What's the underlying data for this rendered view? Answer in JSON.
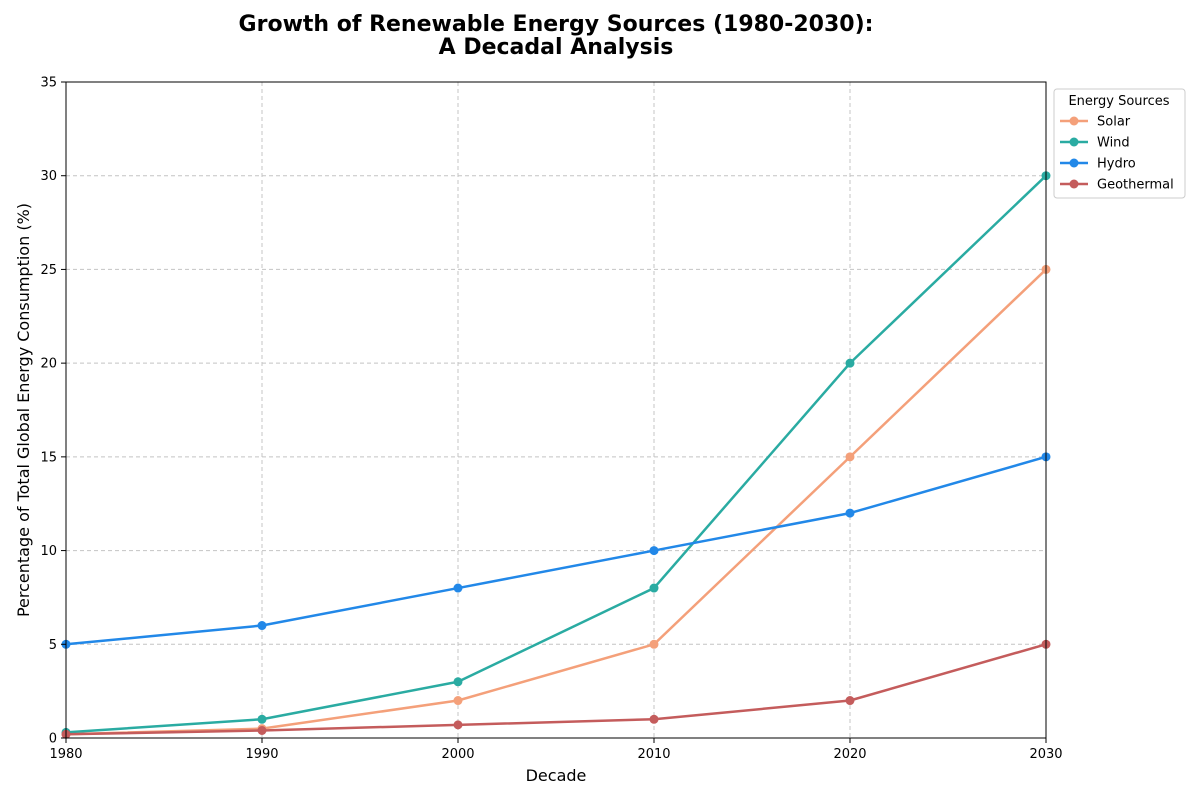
{
  "chart_data": {
    "type": "line",
    "title_line1": "Growth of Renewable Energy Sources (1980-2030):",
    "title_line2": "A Decadal Analysis",
    "xlabel": "Decade",
    "ylabel": "Percentage of Total Global Energy Consumption (%)",
    "x": [
      1980,
      1990,
      2000,
      2010,
      2020,
      2030
    ],
    "xlim": [
      1980,
      2030
    ],
    "ylim": [
      0,
      35
    ],
    "xticks": [
      "1980",
      "1990",
      "2000",
      "2010",
      "2020",
      "2030"
    ],
    "yticks": [
      "0",
      "5",
      "10",
      "15",
      "20",
      "25",
      "30",
      "35"
    ],
    "grid": true,
    "legend": {
      "title": "Energy Sources",
      "placement": "outside-top-right"
    },
    "series": [
      {
        "name": "Solar",
        "color": "#F4A07A",
        "values": [
          0.2,
          0.5,
          2,
          5,
          15,
          25
        ]
      },
      {
        "name": "Wind",
        "color": "#2AABA2",
        "values": [
          0.3,
          1,
          3,
          8,
          20,
          30
        ]
      },
      {
        "name": "Hydro",
        "color": "#2288E8",
        "values": [
          5,
          6,
          8,
          10,
          12,
          15
        ]
      },
      {
        "name": "Geothermal",
        "color": "#C45C5C",
        "values": [
          0.2,
          0.4,
          0.7,
          1,
          2,
          5
        ]
      }
    ]
  }
}
